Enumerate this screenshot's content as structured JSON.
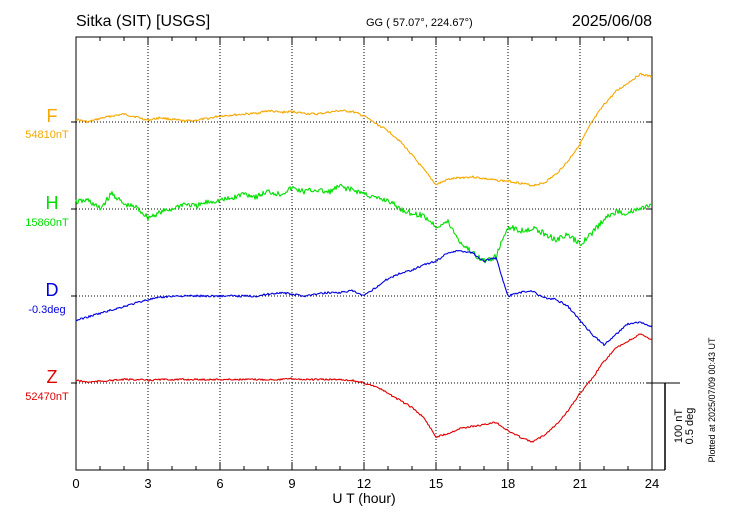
{
  "header": {
    "station": "Sitka (SIT)  [USGS]",
    "coords": "GG ( 57.07°, 224.67°)",
    "date": "2025/06/08"
  },
  "chart_data": {
    "type": "line",
    "title": "",
    "xlabel": "U T (hour)",
    "ylabel": "",
    "xlim": [
      0,
      24
    ],
    "x_ticks": [
      0,
      3,
      6,
      9,
      12,
      15,
      18,
      21,
      24
    ],
    "grid": true,
    "scale_bar": {
      "label1": "100 nT",
      "label2": "0.5 deg"
    },
    "plotted_note": "Plotted at 2025/07/09 00:43 UT",
    "series": [
      {
        "name": "F",
        "baseline_label": "54810nT",
        "color": "#f5a800",
        "unit": "nT",
        "baseline": 54810,
        "x": [
          0,
          0.5,
          1,
          1.5,
          2,
          2.5,
          3,
          3.5,
          4,
          4.5,
          5,
          5.5,
          6,
          6.5,
          7,
          7.5,
          8,
          8.5,
          9,
          9.5,
          10,
          10.5,
          11,
          11.5,
          12,
          12.5,
          13,
          13.5,
          14,
          14.5,
          15,
          15.5,
          16,
          16.5,
          17,
          17.5,
          18,
          18.5,
          19,
          19.5,
          20,
          20.5,
          21,
          21.5,
          22,
          22.5,
          23,
          23.5,
          24
        ],
        "y": [
          3,
          0,
          4,
          7,
          9,
          6,
          2,
          5,
          3,
          1,
          2,
          4,
          7,
          8,
          9,
          10,
          13,
          11,
          12,
          10,
          9,
          11,
          13,
          12,
          7,
          -2,
          -10,
          -22,
          -38,
          -55,
          -72,
          -66,
          -64,
          -63,
          -65,
          -67,
          -68,
          -70,
          -73,
          -70,
          -60,
          -45,
          -25,
          0,
          20,
          35,
          45,
          55,
          52
        ]
      },
      {
        "name": "H",
        "baseline_label": "15860nT",
        "color": "#00e000",
        "unit": "nT",
        "baseline": 15860,
        "x": [
          0,
          0.5,
          1,
          1.5,
          2,
          2.5,
          3,
          3.5,
          4,
          4.5,
          5,
          5.5,
          6,
          6.5,
          7,
          7.5,
          8,
          8.5,
          9,
          9.5,
          10,
          10.5,
          11,
          11.5,
          12,
          12.5,
          13,
          13.5,
          14,
          14.5,
          15,
          15.5,
          16,
          16.5,
          17,
          17.5,
          18,
          18.5,
          19,
          19.5,
          20,
          20.5,
          21,
          21.5,
          22,
          22.5,
          23,
          23.5,
          24
        ],
        "y": [
          8,
          10,
          0,
          18,
          5,
          2,
          -10,
          -4,
          0,
          6,
          3,
          8,
          10,
          12,
          18,
          14,
          20,
          17,
          24,
          20,
          22,
          19,
          26,
          22,
          18,
          12,
          10,
          0,
          -5,
          -8,
          -20,
          -15,
          -38,
          -50,
          -60,
          -55,
          -20,
          -25,
          -22,
          -28,
          -35,
          -30,
          -40,
          -28,
          -12,
          -3,
          -5,
          0,
          5
        ]
      },
      {
        "name": "D",
        "baseline_label": "-0.3deg",
        "color": "#0000e0",
        "unit": "deg",
        "baseline": -0.3,
        "x": [
          0,
          0.5,
          1,
          1.5,
          2,
          2.5,
          3,
          3.5,
          4,
          4.5,
          5,
          5.5,
          6,
          6.5,
          7,
          7.5,
          8,
          8.5,
          9,
          9.5,
          10,
          10.5,
          11,
          11.5,
          12,
          12.5,
          13,
          13.5,
          14,
          14.5,
          15,
          15.5,
          16,
          16.5,
          17,
          17.5,
          18,
          18.5,
          19,
          19.5,
          20,
          20.5,
          21,
          21.5,
          22,
          22.5,
          23,
          23.5,
          24
        ],
        "y": [
          -0.14,
          -0.12,
          -0.1,
          -0.08,
          -0.06,
          -0.04,
          -0.02,
          -0.01,
          0.0,
          0.0,
          0.0,
          0.0,
          0.0,
          0.0,
          0.0,
          0.0,
          0.01,
          0.02,
          0.01,
          0.0,
          0.01,
          0.02,
          0.02,
          0.03,
          0.0,
          0.05,
          0.1,
          0.13,
          0.15,
          0.18,
          0.2,
          0.25,
          0.26,
          0.25,
          0.2,
          0.22,
          0.0,
          0.02,
          0.03,
          -0.01,
          -0.02,
          -0.06,
          -0.14,
          -0.22,
          -0.28,
          -0.22,
          -0.16,
          -0.15,
          -0.18
        ]
      },
      {
        "name": "Z",
        "baseline_label": "52470nT",
        "color": "#e00000",
        "unit": "nT",
        "baseline": 52470,
        "x": [
          0,
          0.5,
          1,
          1.5,
          2,
          2.5,
          3,
          3.5,
          4,
          4.5,
          5,
          5.5,
          6,
          6.5,
          7,
          7.5,
          8,
          8.5,
          9,
          9.5,
          10,
          10.5,
          11,
          11.5,
          12,
          12.5,
          13,
          13.5,
          14,
          14.5,
          15,
          15.5,
          16,
          16.5,
          17,
          17.5,
          18,
          18.5,
          19,
          19.5,
          20,
          20.5,
          21,
          21.5,
          22,
          22.5,
          23,
          23.5,
          24
        ],
        "y": [
          3,
          1,
          2,
          3,
          4,
          4,
          3,
          4,
          4,
          4,
          4,
          4,
          4,
          4,
          4,
          4,
          4,
          4,
          5,
          4,
          4,
          4,
          4,
          3,
          0,
          -4,
          -12,
          -20,
          -28,
          -40,
          -62,
          -58,
          -52,
          -50,
          -48,
          -45,
          -55,
          -62,
          -68,
          -60,
          -48,
          -32,
          -12,
          5,
          25,
          40,
          48,
          56,
          50
        ]
      }
    ]
  }
}
